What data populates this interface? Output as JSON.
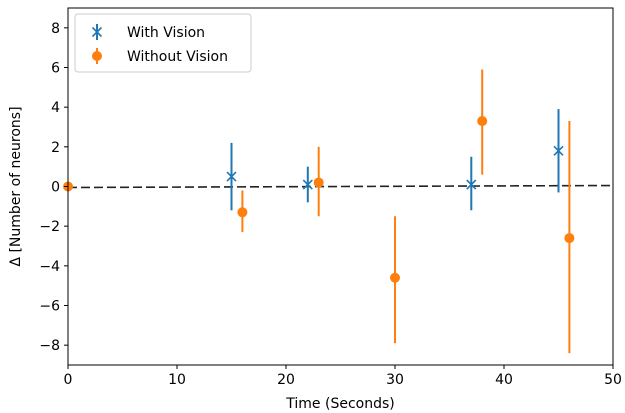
{
  "chart_data": {
    "type": "scatter",
    "title": "",
    "xlabel": "Time (Seconds)",
    "ylabel": "Δ [Number of neurons]",
    "xlim": [
      0,
      50
    ],
    "ylim": [
      -9,
      9
    ],
    "xticks": [
      0,
      10,
      20,
      30,
      40,
      50
    ],
    "yticks": [
      -8,
      -6,
      -4,
      -2,
      0,
      2,
      4,
      6,
      8
    ],
    "xtick_labels": [
      "0",
      "10",
      "20",
      "30",
      "40",
      "50"
    ],
    "ytick_labels": [
      "−8",
      "−6",
      "−4",
      "−2",
      "0",
      "2",
      "4",
      "6",
      "8"
    ],
    "grid": false,
    "legend_position": "top-left",
    "reference_line": {
      "y": [
        -0.05,
        0.05
      ],
      "x": [
        0,
        50
      ],
      "style": "dashed",
      "color": "#222222"
    },
    "series": [
      {
        "name": "With Vision",
        "marker": "x",
        "color": "#1f77b4",
        "points": [
          {
            "x": 15,
            "y": 0.5,
            "err_low": -1.2,
            "err_high": 2.2
          },
          {
            "x": 22,
            "y": 0.1,
            "err_low": -0.8,
            "err_high": 1.0
          },
          {
            "x": 37,
            "y": 0.1,
            "err_low": -1.2,
            "err_high": 1.5
          },
          {
            "x": 45,
            "y": 1.8,
            "err_low": -0.3,
            "err_high": 3.9
          }
        ]
      },
      {
        "name": "Without Vision",
        "marker": "circle",
        "color": "#ff7f0e",
        "points": [
          {
            "x": 0,
            "y": 0.0,
            "err_low": -0.2,
            "err_high": 0.2
          },
          {
            "x": 16,
            "y": -1.3,
            "err_low": -2.3,
            "err_high": -0.2
          },
          {
            "x": 23,
            "y": 0.2,
            "err_low": -1.5,
            "err_high": 2.0
          },
          {
            "x": 30,
            "y": -4.6,
            "err_low": -7.9,
            "err_high": -1.5
          },
          {
            "x": 38,
            "y": 3.3,
            "err_low": 0.6,
            "err_high": 5.9
          },
          {
            "x": 46,
            "y": -2.6,
            "err_low": -8.4,
            "err_high": 3.3
          }
        ]
      }
    ]
  }
}
